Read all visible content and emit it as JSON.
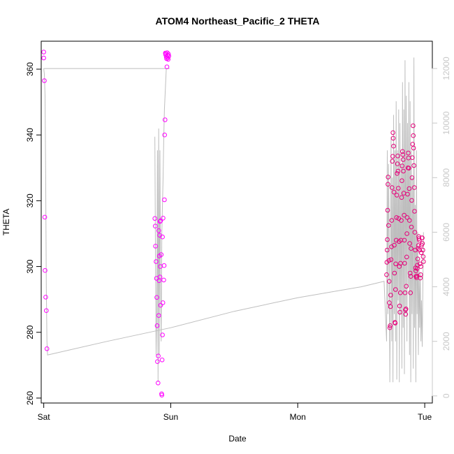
{
  "chart_data": {
    "type": "scatter",
    "title": "ATOM4 Northeast_Pacific_2 THETA",
    "xlabel": "Date",
    "ylabel": "THETA",
    "xlim": [
      -0.02,
      3.06
    ],
    "ylim": [
      258.5,
      368.5
    ],
    "y2lim": [
      -260,
      13000
    ],
    "x_ticks": [
      {
        "value": 0,
        "label": "Sat"
      },
      {
        "value": 1,
        "label": "Sun"
      },
      {
        "value": 2,
        "label": "Mon"
      },
      {
        "value": 3,
        "label": "Tue"
      }
    ],
    "y_ticks": [
      260,
      280,
      300,
      320,
      340,
      360
    ],
    "y2_ticks": [
      0,
      2000,
      4000,
      6000,
      8000,
      10000,
      12000
    ],
    "colors": {
      "points_early": "#ff00ff",
      "points_late": "#e6007a",
      "line": "#bebebe",
      "right_axis": "#c8c8c8"
    },
    "series": [
      {
        "type": "points",
        "x": [
          0.0,
          0.0,
          0.005,
          0.008,
          0.01,
          0.015,
          0.02,
          0.025,
          0.875,
          0.878,
          0.88,
          0.885,
          0.888,
          0.89,
          0.893,
          0.895,
          0.9,
          0.902,
          0.905,
          0.905,
          0.908,
          0.91,
          0.912,
          0.915,
          0.915,
          0.918,
          0.92,
          0.92,
          0.925,
          0.928,
          0.93,
          0.932,
          0.935,
          0.935,
          0.938,
          0.94,
          0.945,
          0.948,
          0.95,
          0.952,
          0.955,
          0.958,
          0.96,
          0.962,
          0.965,
          0.968,
          0.97,
          0.972,
          0.975,
          0.978,
          0.98,
          0.982,
          0.985
        ],
        "y": [
          365.2,
          363.4,
          356.5,
          315.0,
          298.8,
          290.7,
          286.6,
          275.0,
          314.6,
          312.3,
          306.2,
          301.5,
          296.4,
          290.6,
          282.0,
          271.1,
          264.6,
          272.8,
          310.9,
          285.1,
          295.7,
          303.2,
          309.5,
          313.7,
          296.8,
          300.0,
          288.2,
          313.9,
          303.6,
          261.3,
          260.9,
          271.6,
          279.2,
          309.0,
          289.0,
          314.7,
          295.9,
          300.3,
          320.3,
          340.0,
          344.6,
          364.9,
          364.4,
          364.8,
          363.7,
          363.2,
          360.7,
          365.0,
          364.2,
          363.5,
          363.0,
          364.6,
          364.0
        ]
      },
      {
        "type": "points",
        "x": [
          2.7,
          2.702,
          2.704,
          2.706,
          2.708,
          2.71,
          2.712,
          2.715,
          2.718,
          2.72,
          2.722,
          2.725,
          2.728,
          2.73,
          2.732,
          2.735,
          2.738,
          2.74,
          2.742,
          2.745,
          2.748,
          2.75,
          2.752,
          2.755,
          2.758,
          2.76,
          2.762,
          2.765,
          2.768,
          2.77,
          2.772,
          2.775,
          2.778,
          2.78,
          2.782,
          2.785,
          2.788,
          2.79,
          2.792,
          2.795,
          2.798,
          2.8,
          2.802,
          2.805,
          2.808,
          2.81,
          2.812,
          2.815,
          2.818,
          2.82,
          2.822,
          2.825,
          2.828,
          2.83,
          2.832,
          2.835,
          2.838,
          2.84,
          2.842,
          2.845,
          2.848,
          2.85,
          2.852,
          2.855,
          2.858,
          2.86,
          2.862,
          2.865,
          2.868,
          2.87,
          2.872,
          2.875,
          2.878,
          2.88,
          2.882,
          2.885,
          2.888,
          2.89,
          2.892,
          2.895,
          2.898,
          2.9,
          2.902,
          2.905,
          2.908,
          2.91,
          2.912,
          2.915,
          2.918,
          2.92,
          2.922,
          2.925,
          2.928,
          2.93,
          2.932,
          2.935,
          2.938,
          2.94,
          2.942,
          2.945,
          2.948,
          2.95,
          2.952,
          2.955,
          2.958,
          2.96,
          2.962,
          2.965,
          2.968,
          2.97,
          2.972,
          2.975,
          2.978,
          2.98,
          2.982,
          2.985,
          2.988,
          2.99
        ],
        "y": [
          297.5,
          301.3,
          305.0,
          308.2,
          317.1,
          325.0,
          327.2,
          312.5,
          301.8,
          295.5,
          289.0,
          281.4,
          282.0,
          287.8,
          291.3,
          302.1,
          306.0,
          314.0,
          324.0,
          332.0,
          333.5,
          340.7,
          339.0,
          336.6,
          322.6,
          306.5,
          298.0,
          283.0,
          282.8,
          293.0,
          300.8,
          308.0,
          314.9,
          321.7,
          328.3,
          331.2,
          333.6,
          329.0,
          323.8,
          314.6,
          307.6,
          300.0,
          288.0,
          286.1,
          292.0,
          301.0,
          308.0,
          314.0,
          321.0,
          326.1,
          330.6,
          335.0,
          334.0,
          332.5,
          329.0,
          322.3,
          315.6,
          308.0,
          301.0,
          292.0,
          286.8,
          285.5,
          287.1,
          294.0,
          302.9,
          310.0,
          314.9,
          322.0,
          330.0,
          334.5,
          333.0,
          329.9,
          323.7,
          314.0,
          307.0,
          298.0,
          292.0,
          297.0,
          305.5,
          312.0,
          320.1,
          327.0,
          333.1,
          337.2,
          342.8,
          339.8,
          336.0,
          330.7,
          324.0,
          316.8,
          310.4,
          305.0,
          299.6,
          298.7,
          297.0,
          296.6,
          297.1,
          299.4,
          300.4,
          302.3,
          305.5,
          306.4,
          309.1,
          308.5,
          308.0,
          305.0,
          300.8,
          296.5,
          297.5,
          300.0,
          304.2,
          306.5,
          308.7,
          308.7,
          307.0,
          305.0,
          303.0,
          301.5
        ]
      }
    ],
    "line_series": {
      "x": [
        0.0,
        0.005,
        0.01,
        0.015,
        0.02,
        0.025,
        0.03,
        0.03,
        0.5,
        1.0,
        1.5,
        2.0,
        2.5,
        2.68,
        2.7,
        2.705,
        2.71,
        2.715,
        2.72,
        2.725,
        2.73,
        2.735,
        2.74,
        2.745,
        2.75,
        2.755,
        2.76,
        2.765,
        2.77,
        2.775,
        2.78,
        2.785,
        2.79,
        2.795,
        2.8,
        2.805,
        2.81,
        2.815,
        2.82,
        2.825,
        2.83,
        2.835,
        2.84,
        2.845,
        2.85,
        2.855,
        2.86,
        2.865,
        2.87,
        2.875,
        2.88,
        2.885,
        2.89,
        2.895,
        2.9,
        2.905,
        2.91,
        2.915,
        2.92,
        2.925,
        2.93,
        2.935,
        2.94,
        2.945,
        2.95,
        2.955,
        2.96,
        2.965,
        2.97,
        2.975,
        2.98,
        2.985,
        2.99
      ],
      "y": [
        12000,
        11800,
        11000,
        8000,
        4000,
        2000,
        1500,
        1500,
        2000,
        2500,
        3100,
        3600,
        4000,
        4200,
        2000,
        9000,
        3000,
        8500,
        6000,
        500,
        4000,
        9500,
        2000,
        8000,
        500,
        10300,
        3000,
        9000,
        2000,
        10800,
        600,
        9000,
        3500,
        10500,
        500,
        10000,
        3000,
        8500,
        1000,
        11500,
        2500,
        10500,
        800,
        12300,
        3000,
        11000,
        2000,
        10000,
        4000,
        11500,
        1500,
        10800,
        500,
        9000,
        3000,
        8000,
        1000,
        12400,
        2500,
        7000,
        500,
        9000,
        3000,
        6000,
        1500,
        5000,
        2500,
        4500,
        2000,
        3500,
        1800,
        4000,
        6000
      ]
    },
    "line_series_2": {
      "x": [
        0.875,
        0.88,
        0.885,
        0.89,
        0.895,
        0.9,
        0.905,
        0.91,
        0.915,
        0.92,
        0.925,
        0.93,
        0.935,
        0.94,
        0.945,
        0.95,
        0.955,
        0.96,
        0.965,
        0.97,
        0.975,
        0.98,
        0.985,
        0.99
      ],
      "y": [
        9500,
        5000,
        1500,
        3000,
        9000,
        500,
        9800,
        1500,
        9000,
        4000,
        2000,
        6000,
        7000,
        8000,
        9500,
        10500,
        11000,
        11500,
        12000,
        12000,
        12000,
        12000,
        12000,
        12000
      ]
    },
    "top_line": {
      "x": [
        0.0,
        0.99
      ],
      "y": [
        12000,
        12000
      ]
    }
  }
}
